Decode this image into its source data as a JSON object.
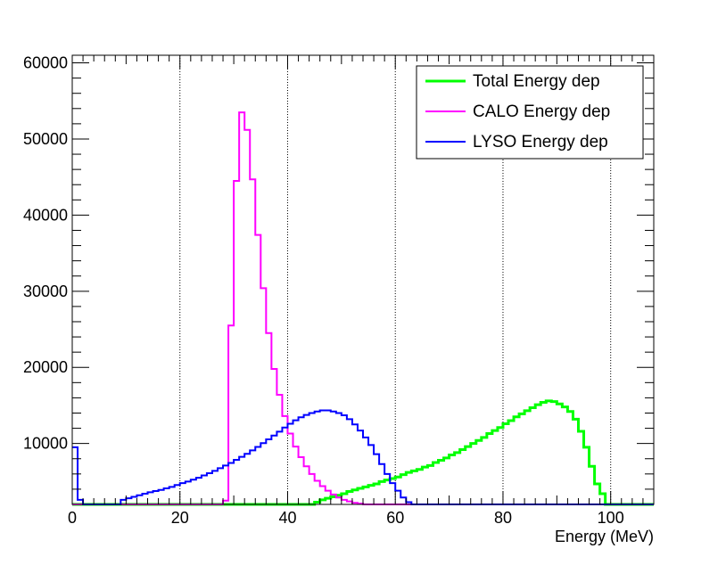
{
  "chart_data": {
    "type": "line",
    "title": "",
    "xlabel": "Energy (MeV)",
    "ylabel": "",
    "xlim": [
      0,
      108
    ],
    "ylim": [
      2000,
      61000
    ],
    "x_ticks": [
      0,
      20,
      40,
      60,
      80,
      100
    ],
    "x_tick_labels": [
      "0",
      "20",
      "40",
      "60",
      "80",
      "100"
    ],
    "y_ticks": [
      10000,
      20000,
      30000,
      40000,
      50000,
      60000
    ],
    "y_tick_labels": [
      "10000",
      "20000",
      "30000",
      "40000",
      "50000",
      "60000"
    ],
    "x_grid": true,
    "y_grid": false,
    "histogram": true,
    "bin_width": 1,
    "legend": {
      "placement": "top-right",
      "entries": [
        {
          "label": "Total Energy dep",
          "color": "#00ff00"
        },
        {
          "label": "CALO Energy dep",
          "color": "#ff00ff"
        },
        {
          "label": "LYSO Energy dep",
          "color": "#0000ff"
        }
      ]
    },
    "series": [
      {
        "name": "Total Energy dep",
        "color": "#00ff00",
        "stroke_width": 3,
        "x_start": 0,
        "values": [
          2000,
          2000,
          2000,
          2000,
          2000,
          2000,
          2000,
          2000,
          2000,
          2000,
          2000,
          2000,
          2000,
          2000,
          2000,
          2000,
          2000,
          2000,
          2000,
          2000,
          2000,
          2000,
          2000,
          2000,
          2000,
          2000,
          2000,
          2000,
          2000,
          2000,
          2000,
          2000,
          2000,
          2000,
          2000,
          2000,
          2000,
          2000,
          2000,
          2000,
          2000,
          2000,
          2000,
          2000,
          2000,
          2300,
          2600,
          2800,
          3000,
          3200,
          3400,
          3700,
          3900,
          4100,
          4300,
          4500,
          4700,
          5000,
          5200,
          5400,
          5600,
          5900,
          6200,
          6400,
          6600,
          6900,
          7100,
          7500,
          7800,
          8100,
          8500,
          8800,
          9200,
          9600,
          10000,
          10400,
          10800,
          11300,
          11700,
          12100,
          12600,
          13000,
          13500,
          13900,
          14300,
          14700,
          15100,
          15400,
          15600,
          15500,
          15200,
          14800,
          14200,
          13200,
          11600,
          9500,
          7000,
          4700,
          3400,
          2000,
          2000,
          2000,
          2000,
          2000,
          2000,
          2000,
          2000,
          2000
        ]
      },
      {
        "name": "CALO Energy dep",
        "color": "#ff00ff",
        "stroke_width": 2,
        "x_start": 0,
        "values": [
          2000,
          2000,
          2000,
          2000,
          2000,
          2000,
          2000,
          2000,
          2000,
          2000,
          2000,
          2000,
          2000,
          2000,
          2000,
          2000,
          2000,
          2000,
          2000,
          2000,
          2000,
          2000,
          2000,
          2000,
          2000,
          2000,
          2000,
          2000,
          2500,
          25500,
          44500,
          53500,
          51200,
          44700,
          37400,
          30400,
          24500,
          19800,
          16400,
          13600,
          11300,
          9600,
          8200,
          7000,
          6000,
          5100,
          4400,
          3800,
          3300,
          2900,
          2600,
          2400,
          2200,
          2100,
          2000,
          2000,
          2000,
          2000,
          2000,
          2000,
          2000,
          2000,
          2000,
          2000,
          2000,
          2000,
          2000,
          2000,
          2000,
          2000,
          2000,
          2000,
          2000,
          2000,
          2000,
          2000,
          2000,
          2000,
          2000,
          2000,
          2000,
          2000,
          2000,
          2000,
          2000,
          2000,
          2000,
          2000,
          2000,
          2000,
          2000,
          2000,
          2000,
          2000,
          2000,
          2000,
          2000,
          2000,
          2000,
          2000,
          2000,
          2000,
          2000,
          2000,
          2000,
          2000,
          2000,
          2000
        ]
      },
      {
        "name": "LYSO Energy dep",
        "color": "#0000ff",
        "stroke_width": 2,
        "x_start": 0,
        "values": [
          9500,
          2600,
          2000,
          2000,
          2000,
          2000,
          2000,
          2000,
          2000,
          2600,
          2800,
          3000,
          3200,
          3400,
          3600,
          3750,
          3900,
          4100,
          4300,
          4550,
          4800,
          5000,
          5250,
          5500,
          5800,
          6100,
          6400,
          6750,
          7100,
          7450,
          7850,
          8250,
          8650,
          9100,
          9550,
          10050,
          10550,
          11050,
          11550,
          12100,
          12600,
          13050,
          13450,
          13750,
          14000,
          14200,
          14350,
          14350,
          14200,
          14000,
          13700,
          13200,
          12500,
          11700,
          10800,
          9800,
          8600,
          7300,
          6000,
          4800,
          3800,
          2900,
          2300,
          2000,
          2000,
          2000,
          2000,
          2000,
          2000,
          2000,
          2000,
          2000,
          2000,
          2000,
          2000,
          2000,
          2000,
          2000,
          2000,
          2000,
          2000,
          2000,
          2000,
          2000,
          2000,
          2000,
          2000,
          2000,
          2000,
          2000,
          2000,
          2000,
          2000,
          2000,
          2000,
          2000,
          2000,
          2000,
          2000,
          2000,
          2000,
          2000,
          2000,
          2000,
          2000,
          2000,
          2000,
          2000
        ]
      }
    ]
  }
}
